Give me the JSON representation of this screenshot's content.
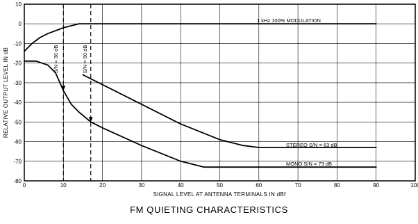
{
  "chart_data": {
    "type": "line",
    "title": "FM QUIETING CHARACTERISTICS",
    "xlabel": "SIGNAL LEVEL AT ANTENNA TERMINALS IN dBf",
    "ylabel": "RELATIVE OUTPUT LEVEL IN dB",
    "xlim": [
      0,
      100
    ],
    "ylim": [
      -80,
      10
    ],
    "x_ticks": [
      "0",
      "10",
      "20",
      "30",
      "40",
      "50",
      "60",
      "70",
      "80",
      "90",
      "100"
    ],
    "y_ticks": [
      "10",
      "0",
      "-10",
      "-20",
      "-30",
      "-40",
      "-50",
      "-60",
      "-70",
      "-80"
    ],
    "grid": true,
    "series": [
      {
        "name": "1 kHz 100% MODULATION",
        "points": [
          [
            0,
            -14
          ],
          [
            2,
            -10
          ],
          [
            4,
            -7
          ],
          [
            6,
            -5
          ],
          [
            8,
            -3.5
          ],
          [
            10,
            -2
          ],
          [
            12,
            -1
          ],
          [
            14,
            0
          ],
          [
            16,
            0
          ],
          [
            90,
            0
          ]
        ]
      },
      {
        "name": "STEREO S/N = 63 dB",
        "points": [
          [
            15,
            -26
          ],
          [
            20,
            -31
          ],
          [
            30,
            -41
          ],
          [
            40,
            -51
          ],
          [
            50,
            -59
          ],
          [
            56,
            -62
          ],
          [
            60,
            -63
          ],
          [
            90,
            -63
          ]
        ]
      },
      {
        "name": "MONO S/N = 73 dB",
        "points": [
          [
            0,
            -19
          ],
          [
            3,
            -19
          ],
          [
            6,
            -21
          ],
          [
            8,
            -25
          ],
          [
            10,
            -34
          ],
          [
            12,
            -41
          ],
          [
            14,
            -45
          ],
          [
            17,
            -50
          ],
          [
            20,
            -53
          ],
          [
            30,
            -62
          ],
          [
            40,
            -70
          ],
          [
            46,
            -73
          ],
          [
            90,
            -73
          ]
        ]
      }
    ],
    "annotations": [
      {
        "text": "S/N = 30 dB",
        "x": 10
      },
      {
        "text": "S/N = 50 dB",
        "x": 17
      }
    ]
  }
}
